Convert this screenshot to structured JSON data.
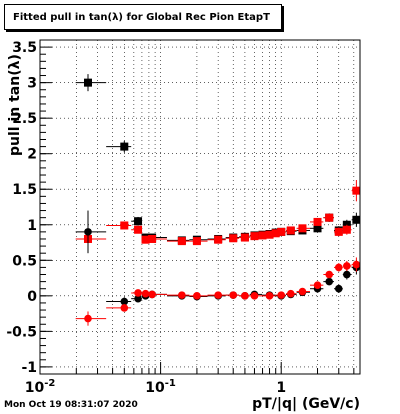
{
  "title": "Fitted pull in tan(λ) for Global Rec Pion EtapT",
  "timestamp": "Mon Oct 19 08:31:07 2020",
  "chart_data": {
    "type": "scatter",
    "title": "Fitted pull in tan(λ) for Global Rec Pion EtapT",
    "xlabel": "pT/|q| (GeV/c)",
    "ylabel": "pull in tan(λ)",
    "xscale": "log",
    "xlim": [
      0.01,
      4.5
    ],
    "ylim": [
      -1.1,
      3.6
    ],
    "x_ticks": [
      0.01,
      0.1,
      1
    ],
    "x_tick_labels": [
      "10^-2",
      "10^-1",
      "1"
    ],
    "y_ticks": [
      -1,
      -0.5,
      0,
      0.5,
      1,
      1.5,
      2,
      2.5,
      3,
      3.5
    ],
    "y_tick_labels": [
      "-1",
      "-0.5",
      "0",
      "0.5",
      "1",
      "1.5",
      "2",
      "2.5",
      "3",
      "3.5"
    ],
    "grid": true,
    "series": [
      {
        "color": "#000000",
        "marker": "square",
        "x": [
          0.025,
          0.05,
          0.065,
          0.075,
          0.085,
          0.15,
          0.2,
          0.3,
          0.4,
          0.5,
          0.6,
          0.7,
          0.8,
          0.9,
          1.0,
          1.2,
          1.5,
          2.0,
          2.5,
          3.0,
          3.5,
          4.2
        ],
        "y": [
          3.0,
          2.1,
          1.05,
          0.82,
          0.82,
          0.78,
          0.79,
          0.8,
          0.82,
          0.83,
          0.85,
          0.86,
          0.87,
          0.89,
          0.9,
          0.91,
          0.92,
          0.95,
          1.1,
          0.92,
          1.0,
          1.07
        ],
        "yerr": [
          0.12,
          0.08,
          0.06,
          0.04,
          0.03,
          0.02,
          0.02,
          0.02,
          0.02,
          0.02,
          0.02,
          0.02,
          0.02,
          0.02,
          0.02,
          0.03,
          0.03,
          0.04,
          0.06,
          0.06,
          0.07,
          0.1
        ]
      },
      {
        "color": "#ff0000",
        "marker": "square",
        "x": [
          0.025,
          0.05,
          0.065,
          0.075,
          0.085,
          0.15,
          0.2,
          0.3,
          0.4,
          0.5,
          0.6,
          0.7,
          0.8,
          0.9,
          1.0,
          1.2,
          1.5,
          2.0,
          2.5,
          3.0,
          3.5,
          4.2
        ],
        "y": [
          0.8,
          0.99,
          0.93,
          0.79,
          0.8,
          0.77,
          0.77,
          0.79,
          0.81,
          0.82,
          0.84,
          0.85,
          0.86,
          0.88,
          0.9,
          0.92,
          0.95,
          1.04,
          1.1,
          0.9,
          0.93,
          1.48
        ],
        "yerr": [
          0.06,
          0.04,
          0.03,
          0.03,
          0.02,
          0.02,
          0.02,
          0.02,
          0.02,
          0.02,
          0.02,
          0.02,
          0.02,
          0.02,
          0.02,
          0.03,
          0.03,
          0.04,
          0.05,
          0.06,
          0.07,
          0.15
        ]
      },
      {
        "color": "#000000",
        "marker": "circle",
        "x": [
          0.025,
          0.05,
          0.065,
          0.075,
          0.085,
          0.15,
          0.2,
          0.3,
          0.4,
          0.5,
          0.6,
          0.8,
          1.0,
          1.2,
          1.5,
          2.0,
          2.5,
          3.0,
          3.5,
          4.2
        ],
        "y": [
          0.9,
          -0.08,
          -0.04,
          0.0,
          0.02,
          0.0,
          -0.01,
          0.0,
          0.01,
          0.0,
          0.02,
          0.01,
          0.0,
          0.02,
          0.05,
          0.1,
          0.2,
          0.1,
          0.3,
          0.4
        ],
        "yerr": [
          0.3,
          0.06,
          0.05,
          0.04,
          0.03,
          0.02,
          0.02,
          0.02,
          0.02,
          0.02,
          0.02,
          0.02,
          0.02,
          0.03,
          0.03,
          0.04,
          0.05,
          0.06,
          0.07,
          0.1
        ]
      },
      {
        "color": "#ff0000",
        "marker": "circle",
        "x": [
          0.025,
          0.05,
          0.065,
          0.075,
          0.085,
          0.15,
          0.2,
          0.3,
          0.4,
          0.5,
          0.6,
          0.8,
          1.0,
          1.2,
          1.5,
          2.0,
          2.5,
          3.0,
          3.5,
          4.2
        ],
        "y": [
          -0.32,
          -0.17,
          0.04,
          0.03,
          0.02,
          0.01,
          0.0,
          0.01,
          0.01,
          0.0,
          0.0,
          0.0,
          0.01,
          0.03,
          0.06,
          0.15,
          0.3,
          0.4,
          0.42,
          0.44
        ],
        "yerr": [
          0.1,
          0.05,
          0.04,
          0.03,
          0.03,
          0.02,
          0.02,
          0.02,
          0.02,
          0.02,
          0.02,
          0.02,
          0.02,
          0.03,
          0.03,
          0.04,
          0.05,
          0.06,
          0.07,
          0.1
        ]
      }
    ]
  }
}
